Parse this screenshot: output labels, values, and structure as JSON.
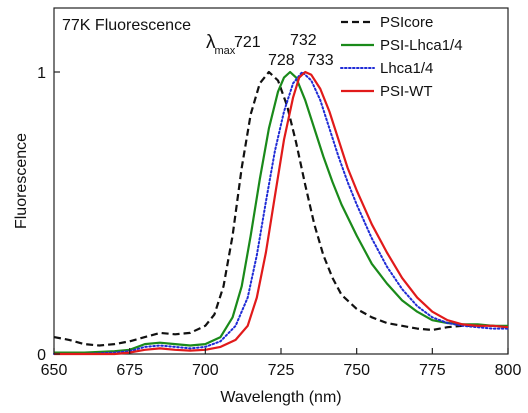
{
  "chart_data": {
    "type": "line",
    "title": "77K Fluorescence",
    "xlabel": "Wavelength (nm)",
    "ylabel": "Fluorescence",
    "xlim": [
      650,
      800
    ],
    "ylim": [
      0,
      1.08
    ],
    "xticks": [
      650,
      675,
      700,
      725,
      750,
      775,
      800
    ],
    "yticks": [
      {
        "value": 0,
        "label": "0"
      },
      {
        "value": 1,
        "label": "1"
      }
    ],
    "legend_position": "top-right",
    "annotation": {
      "symbol": "λ",
      "subscript": "max",
      "labels": [
        {
          "text": "721",
          "color": "#111111",
          "row": "top"
        },
        {
          "text": "732",
          "color": "#1f2bd6",
          "row": "top"
        },
        {
          "text": "728",
          "color": "#1a8a1a",
          "row": "bottom"
        },
        {
          "text": "733",
          "color": "#e11a1a",
          "row": "bottom"
        }
      ]
    },
    "series": [
      {
        "name": "PSIcore",
        "color": "#111111",
        "style": "dashed",
        "points": [
          [
            650,
            0.06
          ],
          [
            655,
            0.05
          ],
          [
            660,
            0.035
          ],
          [
            665,
            0.03
          ],
          [
            670,
            0.035
          ],
          [
            675,
            0.045
          ],
          [
            680,
            0.06
          ],
          [
            685,
            0.075
          ],
          [
            690,
            0.07
          ],
          [
            695,
            0.075
          ],
          [
            700,
            0.1
          ],
          [
            703,
            0.14
          ],
          [
            706,
            0.24
          ],
          [
            709,
            0.42
          ],
          [
            712,
            0.66
          ],
          [
            715,
            0.85
          ],
          [
            718,
            0.96
          ],
          [
            721,
            1.0
          ],
          [
            724,
            0.97
          ],
          [
            727,
            0.88
          ],
          [
            730,
            0.75
          ],
          [
            733,
            0.6
          ],
          [
            736,
            0.46
          ],
          [
            739,
            0.35
          ],
          [
            742,
            0.27
          ],
          [
            745,
            0.21
          ],
          [
            750,
            0.16
          ],
          [
            755,
            0.13
          ],
          [
            760,
            0.11
          ],
          [
            765,
            0.1
          ],
          [
            770,
            0.09
          ],
          [
            775,
            0.085
          ],
          [
            780,
            0.095
          ],
          [
            785,
            0.1
          ],
          [
            790,
            0.1
          ],
          [
            795,
            0.1
          ],
          [
            800,
            0.095
          ]
        ]
      },
      {
        "name": "PSI-Lhca1/4",
        "color": "#1a8a1a",
        "style": "solid",
        "points": [
          [
            650,
            0.005
          ],
          [
            660,
            0.005
          ],
          [
            670,
            0.01
          ],
          [
            675,
            0.015
          ],
          [
            680,
            0.035
          ],
          [
            685,
            0.04
          ],
          [
            690,
            0.035
          ],
          [
            695,
            0.03
          ],
          [
            700,
            0.035
          ],
          [
            705,
            0.06
          ],
          [
            709,
            0.13
          ],
          [
            712,
            0.24
          ],
          [
            715,
            0.42
          ],
          [
            718,
            0.62
          ],
          [
            721,
            0.8
          ],
          [
            724,
            0.93
          ],
          [
            726,
            0.98
          ],
          [
            728,
            1.0
          ],
          [
            730,
            0.98
          ],
          [
            733,
            0.9
          ],
          [
            736,
            0.8
          ],
          [
            739,
            0.7
          ],
          [
            742,
            0.61
          ],
          [
            745,
            0.53
          ],
          [
            750,
            0.42
          ],
          [
            755,
            0.32
          ],
          [
            760,
            0.25
          ],
          [
            765,
            0.19
          ],
          [
            770,
            0.15
          ],
          [
            775,
            0.12
          ],
          [
            780,
            0.11
          ],
          [
            785,
            0.105
          ],
          [
            790,
            0.105
          ],
          [
            795,
            0.1
          ],
          [
            800,
            0.1
          ]
        ]
      },
      {
        "name": "Lhca1/4",
        "color": "#1f2bd6",
        "style": "dotted",
        "points": [
          [
            650,
            0.0
          ],
          [
            660,
            0.0
          ],
          [
            670,
            0.005
          ],
          [
            675,
            0.01
          ],
          [
            680,
            0.025
          ],
          [
            685,
            0.03
          ],
          [
            690,
            0.025
          ],
          [
            695,
            0.02
          ],
          [
            700,
            0.025
          ],
          [
            705,
            0.045
          ],
          [
            710,
            0.1
          ],
          [
            714,
            0.2
          ],
          [
            717,
            0.35
          ],
          [
            720,
            0.54
          ],
          [
            723,
            0.72
          ],
          [
            726,
            0.86
          ],
          [
            729,
            0.96
          ],
          [
            732,
            1.0
          ],
          [
            735,
            0.97
          ],
          [
            738,
            0.9
          ],
          [
            741,
            0.8
          ],
          [
            744,
            0.7
          ],
          [
            747,
            0.61
          ],
          [
            750,
            0.53
          ],
          [
            755,
            0.41
          ],
          [
            760,
            0.31
          ],
          [
            765,
            0.23
          ],
          [
            770,
            0.17
          ],
          [
            775,
            0.13
          ],
          [
            780,
            0.11
          ],
          [
            785,
            0.1
          ],
          [
            790,
            0.095
          ],
          [
            795,
            0.09
          ],
          [
            800,
            0.09
          ]
        ]
      },
      {
        "name": "PSI-WT",
        "color": "#e11a1a",
        "style": "solid",
        "points": [
          [
            650,
            0.0
          ],
          [
            660,
            0.0
          ],
          [
            670,
            0.0
          ],
          [
            675,
            0.005
          ],
          [
            680,
            0.015
          ],
          [
            685,
            0.02
          ],
          [
            690,
            0.015
          ],
          [
            695,
            0.012
          ],
          [
            700,
            0.015
          ],
          [
            705,
            0.025
          ],
          [
            710,
            0.05
          ],
          [
            714,
            0.1
          ],
          [
            717,
            0.2
          ],
          [
            720,
            0.36
          ],
          [
            723,
            0.56
          ],
          [
            726,
            0.76
          ],
          [
            729,
            0.91
          ],
          [
            731,
            0.98
          ],
          [
            733,
            1.0
          ],
          [
            735,
            0.99
          ],
          [
            738,
            0.94
          ],
          [
            741,
            0.86
          ],
          [
            744,
            0.76
          ],
          [
            747,
            0.66
          ],
          [
            750,
            0.58
          ],
          [
            755,
            0.46
          ],
          [
            760,
            0.36
          ],
          [
            765,
            0.27
          ],
          [
            770,
            0.2
          ],
          [
            775,
            0.15
          ],
          [
            780,
            0.12
          ],
          [
            785,
            0.105
          ],
          [
            790,
            0.1
          ],
          [
            795,
            0.1
          ],
          [
            800,
            0.095
          ]
        ]
      }
    ]
  }
}
